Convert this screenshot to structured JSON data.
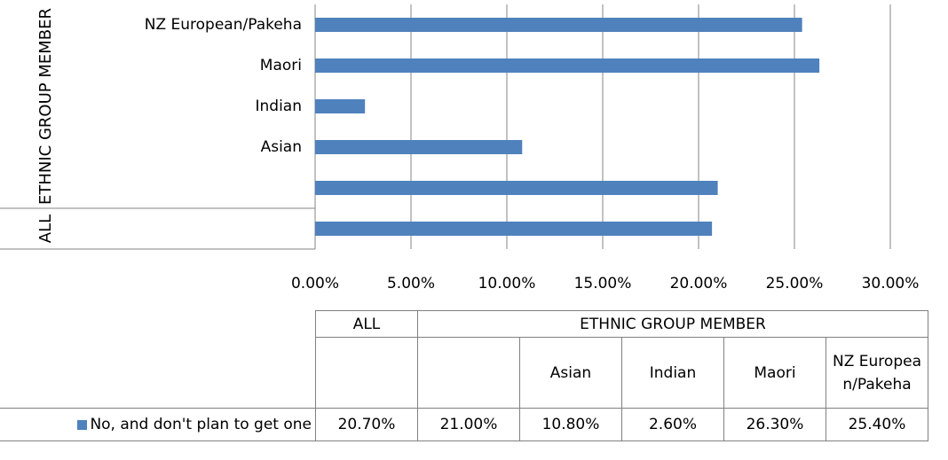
{
  "chart_data": {
    "type": "bar",
    "orientation": "horizontal",
    "categories": [
      null,
      null,
      "Asian",
      "Indian",
      "Maori",
      "NZ European/Pakeha"
    ],
    "groups": [
      {
        "name": "ALL",
        "span": 1
      },
      {
        "name": "ETHNIC GROUP MEMBER",
        "span": 5
      }
    ],
    "series": [
      {
        "name": "No, and don't plan to get one",
        "color": "#4f81bd",
        "values": [
          20.7,
          21.0,
          10.8,
          2.6,
          26.3,
          25.4
        ],
        "value_labels": [
          "20.70%",
          "21.00%",
          "10.80%",
          "2.60%",
          "26.30%",
          "25.40%"
        ]
      }
    ],
    "xlim": [
      0,
      30
    ],
    "xticks": [
      {
        "value": 0,
        "label": "0.00%"
      },
      {
        "value": 5,
        "label": "5.00%"
      },
      {
        "value": 10,
        "label": "10.00%"
      },
      {
        "value": 15,
        "label": "15.00%"
      },
      {
        "value": 20,
        "label": "20.00%"
      },
      {
        "value": 25,
        "label": "25.00%"
      },
      {
        "value": 30,
        "label": "30.00%"
      }
    ],
    "grid": true,
    "data_table": true
  }
}
